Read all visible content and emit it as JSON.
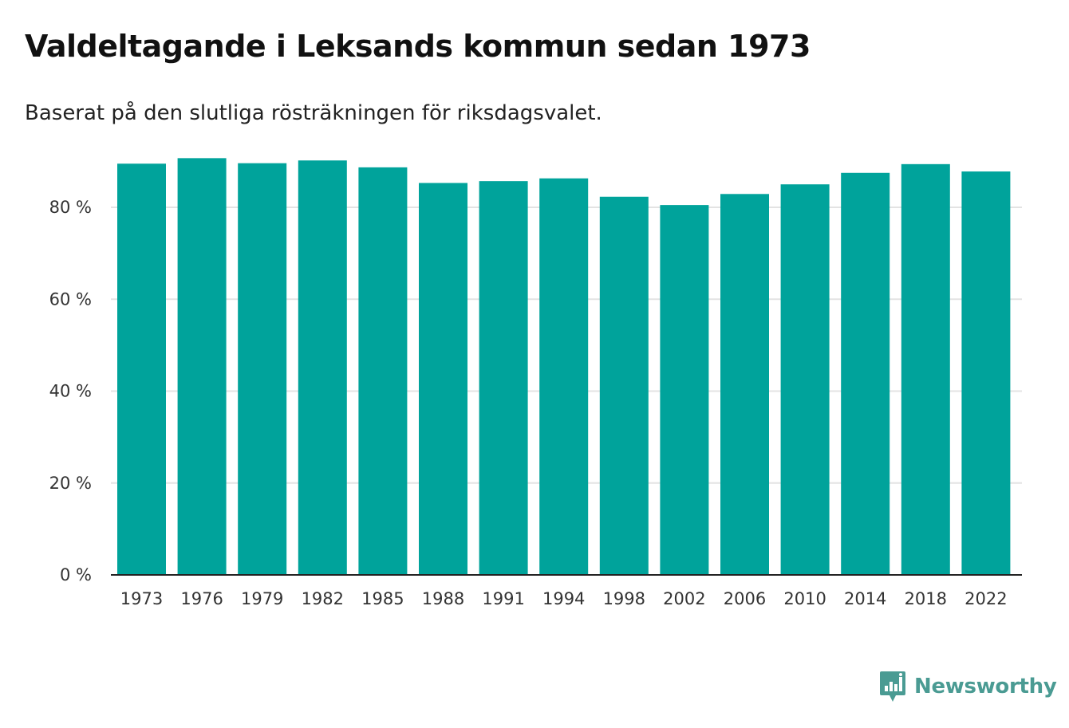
{
  "chart_data": {
    "type": "bar",
    "title": "Valdeltagande i Leksands kommun sedan 1973",
    "subtitle": "Baserat på den slutliga rösträkningen för riksdagsvalet.",
    "xlabel": "",
    "ylabel": "",
    "categories": [
      "1973",
      "1976",
      "1979",
      "1982",
      "1985",
      "1988",
      "1991",
      "1994",
      "1998",
      "2002",
      "2006",
      "2010",
      "2014",
      "2018",
      "2022"
    ],
    "values": [
      89.5,
      90.7,
      89.6,
      90.2,
      88.7,
      85.3,
      85.7,
      86.3,
      82.3,
      80.5,
      82.9,
      85.0,
      87.5,
      89.4,
      87.8
    ],
    "ylim": [
      0,
      90
    ],
    "yticks": [
      0,
      20,
      40,
      60,
      80
    ],
    "ytick_labels": [
      "0 %",
      "20 %",
      "40 %",
      "60 %",
      "80 %"
    ],
    "grid": true,
    "bar_color": "#00a39b"
  },
  "brand": {
    "name": "Newsworthy",
    "color": "#4a9b93"
  }
}
